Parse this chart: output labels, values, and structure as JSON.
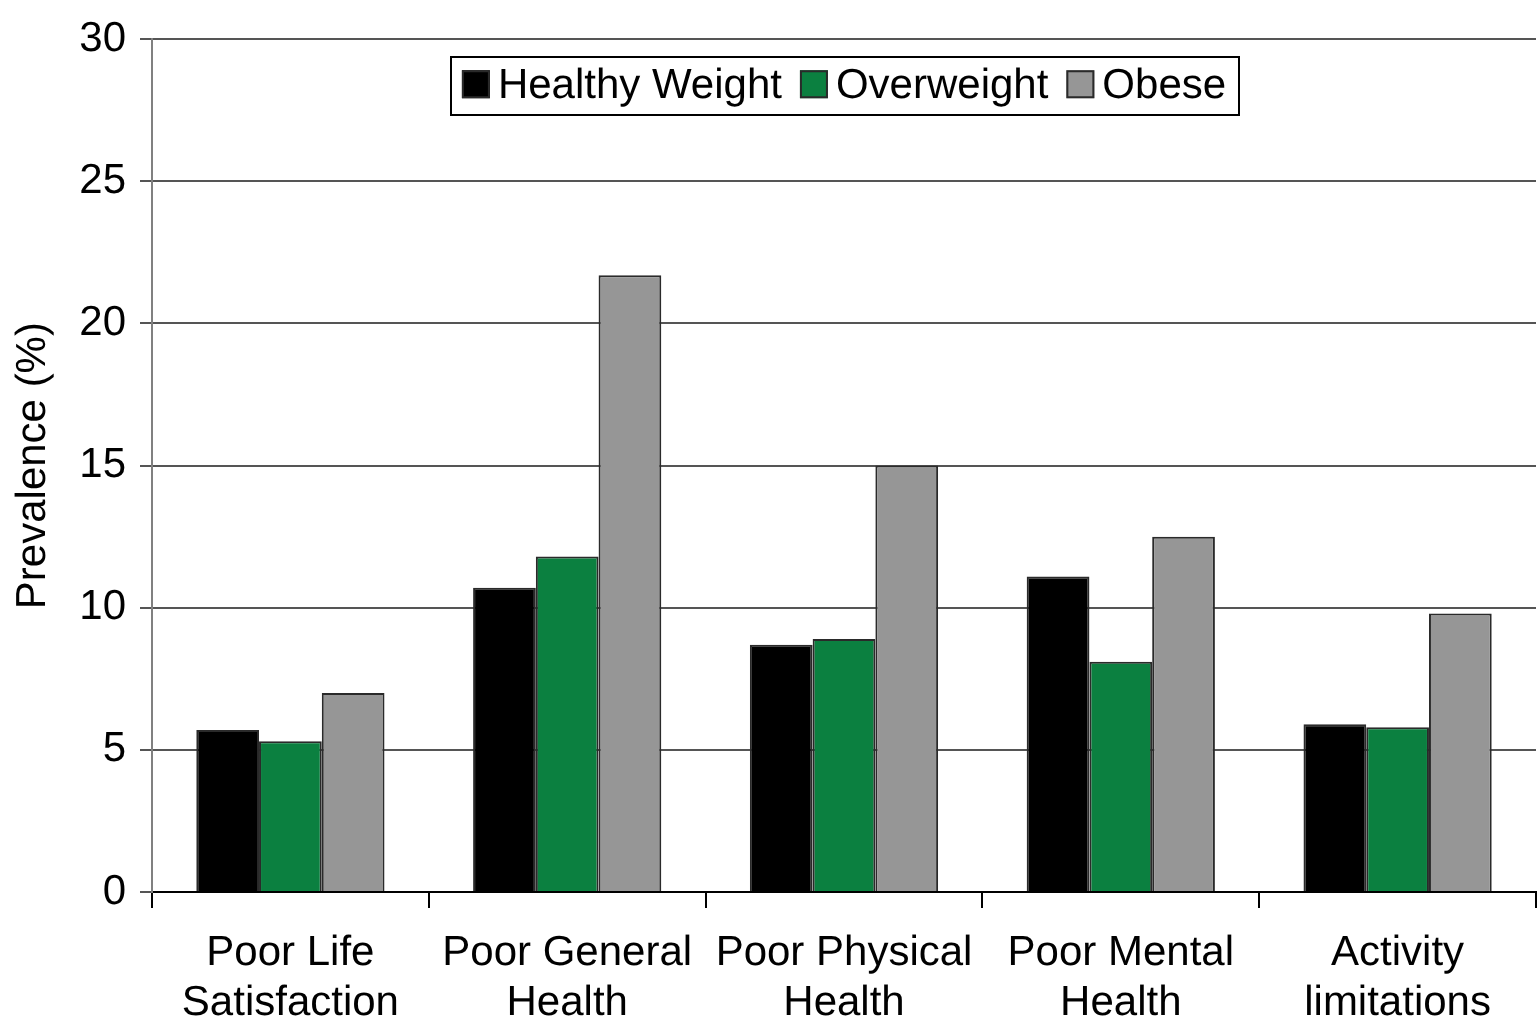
{
  "chart_data": {
    "type": "bar",
    "ylabel": "Prevalence (%)",
    "categories": [
      "Poor Life Satisfaction",
      "Poor General Health",
      "Poor Physical Health",
      "Poor Mental Health",
      "Activity limitations"
    ],
    "series": [
      {
        "name": "Healthy Weight",
        "color": "#000000",
        "values": [
          5.7,
          10.7,
          8.7,
          11.1,
          5.9
        ]
      },
      {
        "name": "Overweight",
        "color": "#0b8040",
        "values": [
          5.3,
          11.8,
          8.9,
          8.1,
          5.8
        ]
      },
      {
        "name": "Obese",
        "color": "#969696",
        "values": [
          7.0,
          21.7,
          15.0,
          12.5,
          9.8
        ]
      }
    ],
    "ylim": [
      0,
      30
    ],
    "yticks": [
      0,
      5,
      10,
      15,
      20,
      25,
      30
    ],
    "grid": "y",
    "legend": "top"
  }
}
